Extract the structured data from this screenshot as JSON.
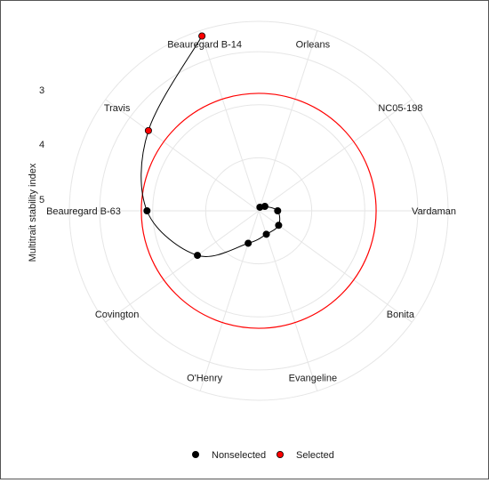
{
  "chart_data": {
    "type": "scatter",
    "subtype": "polar-radar",
    "title": "",
    "ylabel": "Multitrait stability index",
    "radial_ticks": [
      "3",
      "4",
      "5"
    ],
    "genotypes": [
      "Beauregard B-14",
      "Orleans",
      "NC05-198",
      "Vardaman",
      "Bonita",
      "Evangeline",
      "O'Henry",
      "Covington",
      "Beauregard B-63",
      "Travis"
    ],
    "cutpoint_color": "#ff0000",
    "grid": true,
    "legend": {
      "position": "bottom",
      "items": [
        {
          "label": "Nonselected",
          "color": "#000000"
        },
        {
          "label": "Selected",
          "color": "#ff0000"
        }
      ]
    },
    "points": [
      {
        "genotype": "Beauregard B-14",
        "selected": true,
        "value": 0.97
      },
      {
        "genotype": "Travis",
        "selected": true,
        "value": 0.72
      },
      {
        "genotype": "Beauregard B-63",
        "selected": false,
        "value": 0.59
      },
      {
        "genotype": "Covington",
        "selected": false,
        "value": 0.4
      },
      {
        "genotype": "O'Henry",
        "selected": false,
        "value": 0.18
      },
      {
        "genotype": "Evangeline",
        "selected": false,
        "value": 0.13
      },
      {
        "genotype": "Bonita",
        "selected": false,
        "value": 0.13
      },
      {
        "genotype": "Vardaman",
        "selected": false,
        "value": 0.1
      },
      {
        "genotype": "NC05-198",
        "selected": false,
        "value": 0.04
      },
      {
        "genotype": "Orleans",
        "selected": false,
        "value": 0.02
      }
    ],
    "cutpoint_value": 0.62
  }
}
